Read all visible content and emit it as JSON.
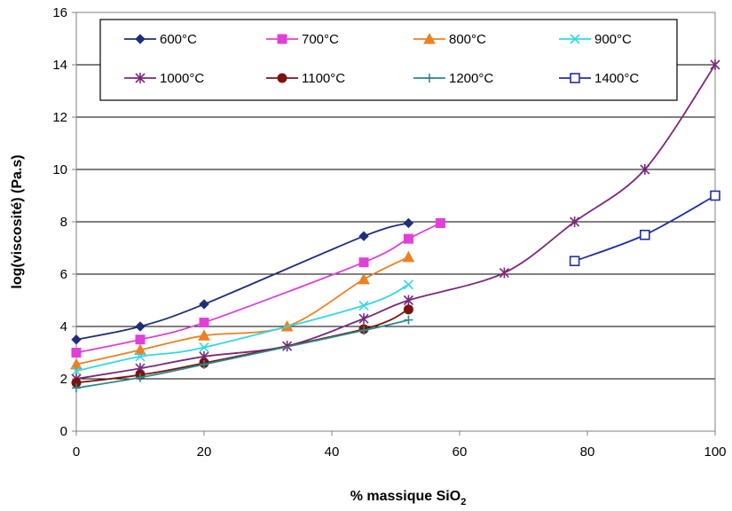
{
  "chart_data": {
    "type": "line",
    "xlabel": "% massique SiO",
    "xlabel_sub": "2",
    "ylabel": "log(viscosité) (Pa.s)",
    "xlim": [
      0,
      100
    ],
    "ylim": [
      0,
      16
    ],
    "xticks": [
      "0",
      "20",
      "40",
      "60",
      "80",
      "100"
    ],
    "yticks": [
      "0",
      "2",
      "4",
      "6",
      "8",
      "10",
      "12",
      "14",
      "16"
    ],
    "grid": "horizontal",
    "legend_position": "top",
    "series": [
      {
        "name": "600°C",
        "color": "#1f2f7a",
        "marker": "diamond",
        "points": [
          [
            0,
            3.5
          ],
          [
            10,
            4.0
          ],
          [
            20,
            4.85
          ],
          [
            45,
            7.45
          ],
          [
            52,
            7.95
          ]
        ]
      },
      {
        "name": "700°C",
        "color": "#e040d8",
        "marker": "square",
        "points": [
          [
            0,
            3.0
          ],
          [
            10,
            3.5
          ],
          [
            20,
            4.15
          ],
          [
            45,
            6.45
          ],
          [
            52,
            7.35
          ],
          [
            57,
            7.95
          ]
        ]
      },
      {
        "name": "800°C",
        "color": "#ee8020",
        "marker": "triangle",
        "points": [
          [
            0,
            2.55
          ],
          [
            10,
            3.1
          ],
          [
            20,
            3.65
          ],
          [
            33,
            4.0
          ],
          [
            45,
            5.8
          ],
          [
            52,
            6.65
          ]
        ]
      },
      {
        "name": "900°C",
        "color": "#30d8e8",
        "marker": "x-star",
        "points": [
          [
            0,
            2.3
          ],
          [
            10,
            2.85
          ],
          [
            20,
            3.2
          ],
          [
            45,
            4.8
          ],
          [
            52,
            5.6
          ]
        ]
      },
      {
        "name": "1000°C",
        "color": "#7a2a7a",
        "marker": "asterisk",
        "points": [
          [
            0,
            2.0
          ],
          [
            10,
            2.4
          ],
          [
            20,
            2.85
          ],
          [
            33,
            3.25
          ],
          [
            45,
            4.3
          ],
          [
            52,
            5.0
          ],
          [
            67,
            6.05
          ],
          [
            78,
            8.0
          ],
          [
            89,
            10.0
          ],
          [
            100,
            14.0
          ]
        ]
      },
      {
        "name": "1100°C",
        "color": "#7a1410",
        "marker": "circle",
        "points": [
          [
            0,
            1.85
          ],
          [
            10,
            2.15
          ],
          [
            20,
            2.6
          ],
          [
            45,
            3.9
          ],
          [
            52,
            4.65
          ]
        ]
      },
      {
        "name": "1200°C",
        "color": "#2a8a8a",
        "marker": "plus",
        "points": [
          [
            0,
            1.65
          ],
          [
            10,
            2.05
          ],
          [
            20,
            2.55
          ],
          [
            45,
            3.85
          ],
          [
            52,
            4.25
          ]
        ]
      },
      {
        "name": "1400°C",
        "color": "#2030a0",
        "marker": "open-square",
        "points": [
          [
            78,
            6.5
          ],
          [
            89,
            7.5
          ],
          [
            100,
            9.0
          ]
        ]
      }
    ]
  }
}
